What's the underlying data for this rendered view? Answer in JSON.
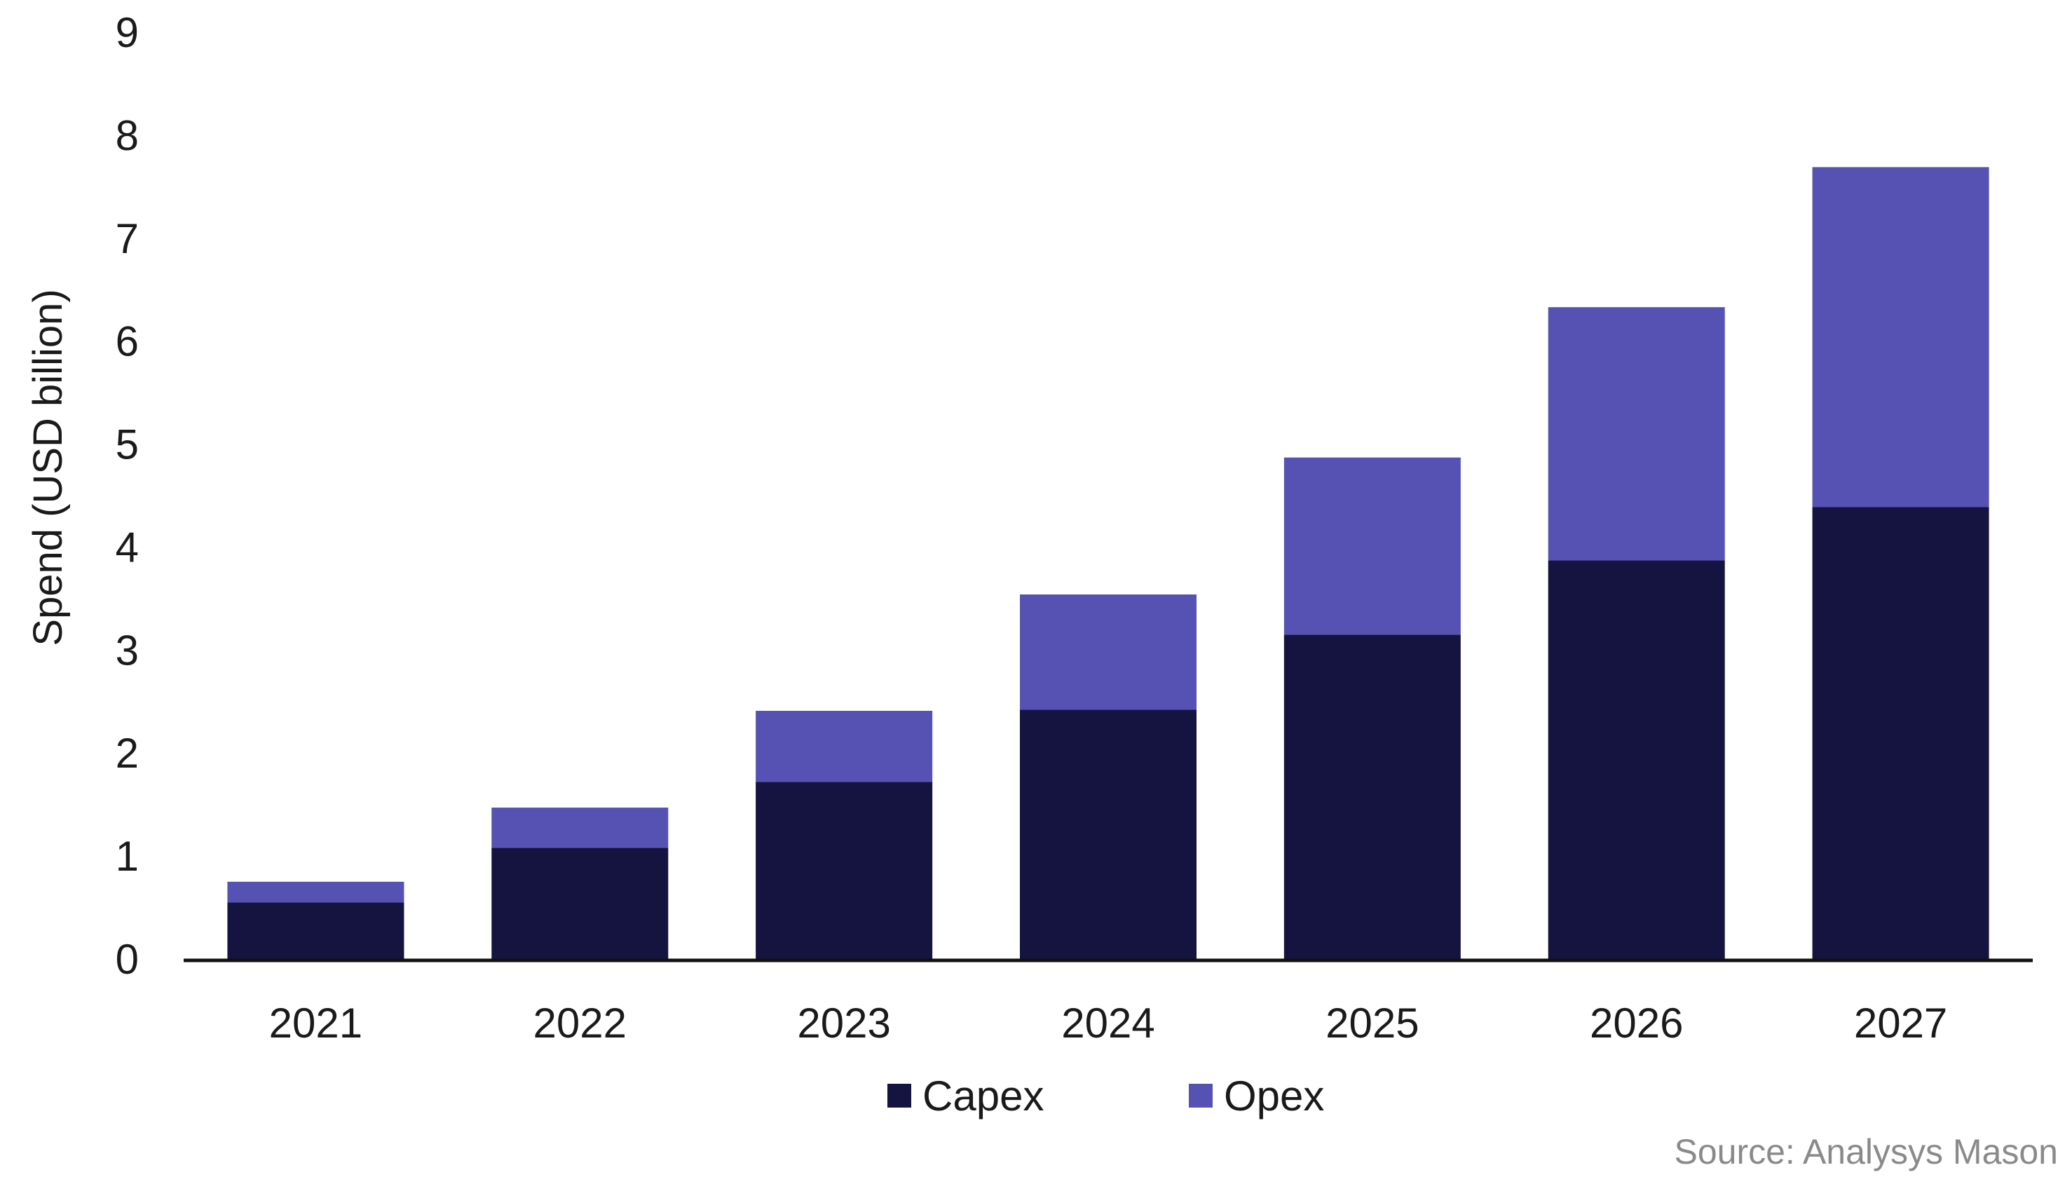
{
  "chart_data": {
    "type": "bar",
    "stacked": true,
    "categories": [
      "2021",
      "2022",
      "2023",
      "2024",
      "2025",
      "2026",
      "2027"
    ],
    "series": [
      {
        "name": "Capex",
        "values": [
          0.55,
          1.08,
          1.72,
          2.42,
          3.15,
          3.87,
          4.39
        ],
        "color": "#15133f"
      },
      {
        "name": "Opex",
        "values": [
          0.2,
          0.39,
          0.69,
          1.12,
          1.72,
          2.46,
          3.3
        ],
        "color": "#5552b3"
      }
    ],
    "ylabel": "Spend (USD billion)",
    "xlabel": "",
    "ylim": [
      0,
      9
    ],
    "yticks": [
      0,
      1,
      2,
      3,
      4,
      5,
      6,
      7,
      8,
      9
    ],
    "grid": false,
    "legend_position": "bottom"
  },
  "source": "Source: Analysys Mason"
}
